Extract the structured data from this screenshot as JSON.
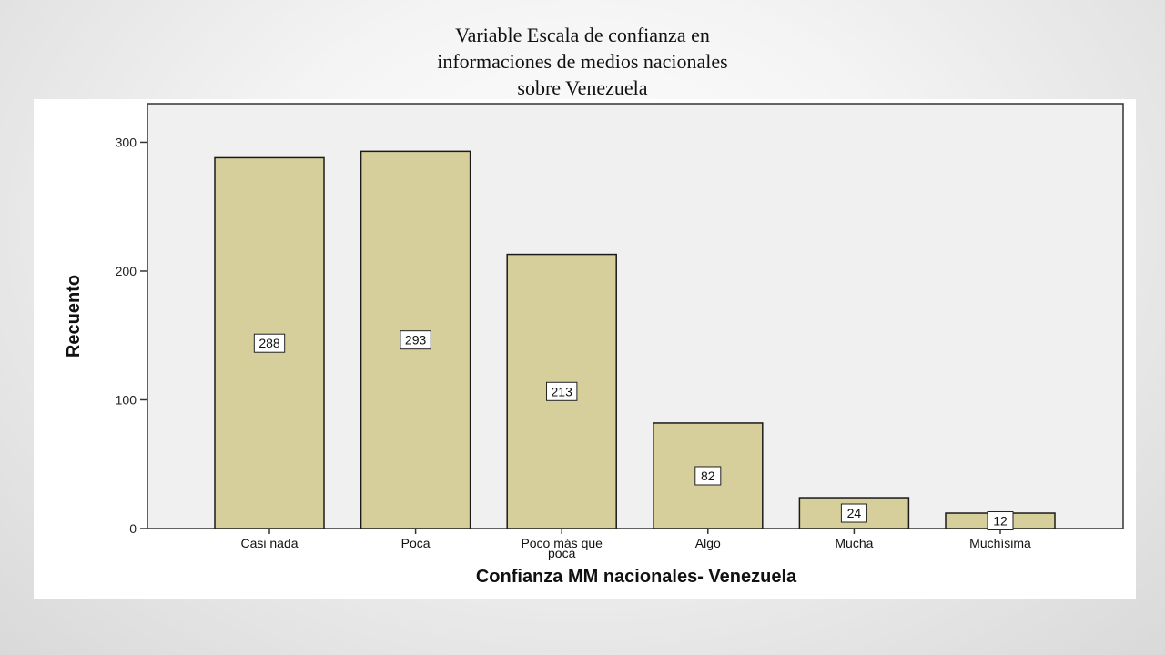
{
  "slide": {
    "title_lines": [
      "Variable Escala de confianza en",
      "informaciones de medios nacionales",
      "sobre Venezuela"
    ]
  },
  "chart_data": {
    "type": "bar",
    "categories": [
      [
        "Casi nada"
      ],
      [
        "Poca"
      ],
      [
        "Poco más que",
        "poca"
      ],
      [
        "Algo"
      ],
      [
        "Mucha"
      ],
      [
        "Muchísima"
      ]
    ],
    "values": [
      288,
      293,
      213,
      82,
      24,
      12
    ],
    "data_labels": [
      "288",
      "293",
      "213",
      "82",
      "24",
      "12"
    ],
    "xlabel": "Confianza MM nacionales- Venezuela",
    "ylabel": "Recuento",
    "ylim": [
      0,
      330
    ],
    "yticks": [
      0,
      100,
      200,
      300
    ],
    "grid": false,
    "colors": {
      "bar_fill": "#d6cf9b",
      "bar_stroke": "#1a1a1a",
      "plot_bg": "#f0f0f0",
      "axis": "#333333",
      "panel_bg": "#ffffff"
    }
  }
}
